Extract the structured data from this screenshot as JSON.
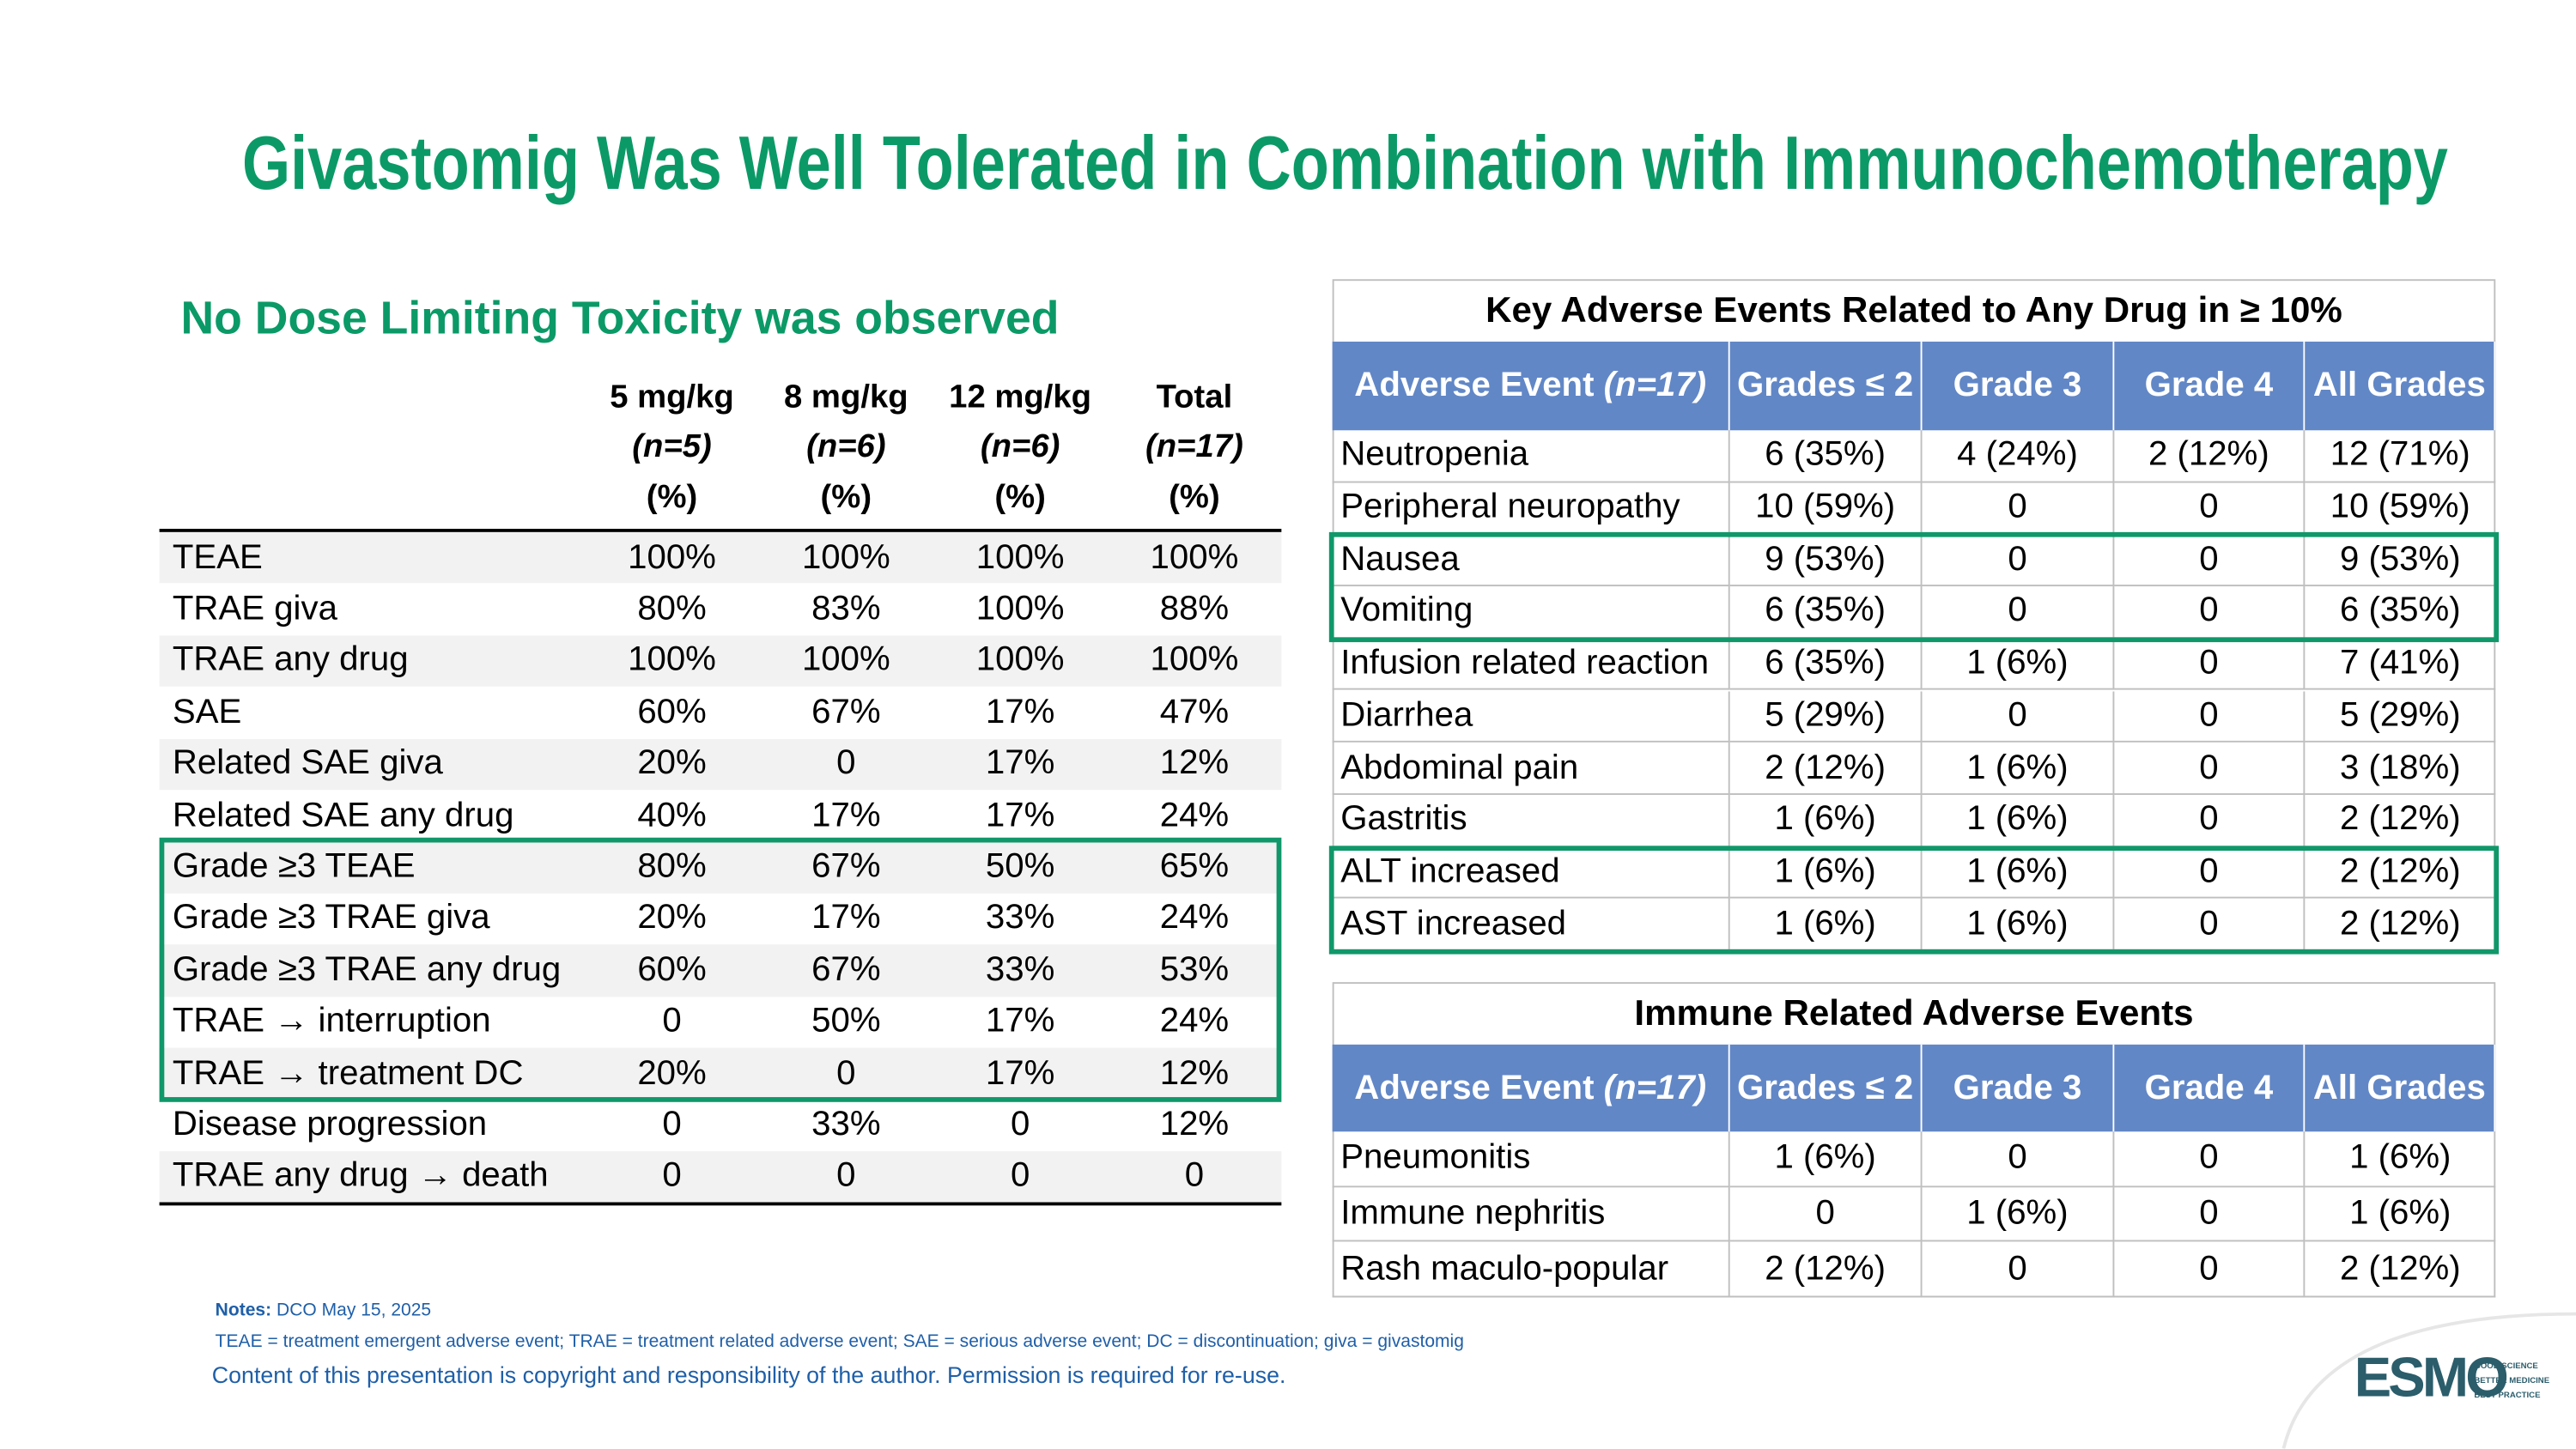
{
  "title": "Givastomig Was Well Tolerated in Combination with Immunochemotherapy",
  "left": {
    "subtitle": "No Dose Limiting Toxicity was observed",
    "columns": [
      {
        "dose": "5 mg/kg",
        "n": "(n=5)",
        "unit": "(%)"
      },
      {
        "dose": "8 mg/kg",
        "n": "(n=6)",
        "unit": "(%)"
      },
      {
        "dose": "12 mg/kg",
        "n": "(n=6)",
        "unit": "(%)"
      },
      {
        "dose": "Total",
        "n": "(n=17)",
        "unit": "(%)"
      }
    ],
    "rows": [
      [
        "TEAE",
        "100%",
        "100%",
        "100%",
        "100%"
      ],
      [
        "TRAE giva",
        "80%",
        "83%",
        "100%",
        "88%"
      ],
      [
        "TRAE any drug",
        "100%",
        "100%",
        "100%",
        "100%"
      ],
      [
        "SAE",
        "60%",
        "67%",
        "17%",
        "47%"
      ],
      [
        "Related SAE giva",
        "20%",
        "0",
        "17%",
        "12%"
      ],
      [
        "Related SAE any drug",
        "40%",
        "17%",
        "17%",
        "24%"
      ],
      [
        "Grade ≥3 TEAE",
        "80%",
        "67%",
        "50%",
        "65%"
      ],
      [
        "Grade ≥3 TRAE giva",
        "20%",
        "17%",
        "33%",
        "24%"
      ],
      [
        "Grade ≥3 TRAE any drug",
        "60%",
        "67%",
        "33%",
        "53%"
      ],
      [
        "TRAE → interruption",
        "0",
        "50%",
        "17%",
        "24%"
      ],
      [
        "TRAE → treatment DC",
        "20%",
        "0",
        "17%",
        "12%"
      ],
      [
        "Disease progression",
        "0",
        "33%",
        "0",
        "12%"
      ],
      [
        "TRAE any drug → death",
        "0",
        "0",
        "0",
        "0"
      ]
    ]
  },
  "key_ae": {
    "title": "Key Adverse Events Related to Any Drug in ≥ 10%",
    "headers": [
      {
        "text": "Adverse Event",
        "note": "(n=17)"
      },
      "Grades ≤ 2",
      "Grade 3",
      "Grade 4",
      "All Grades"
    ],
    "rows": [
      [
        "Neutropenia",
        "6 (35%)",
        "4 (24%)",
        "2 (12%)",
        "12 (71%)"
      ],
      [
        "Peripheral neuropathy",
        "10 (59%)",
        "0",
        "0",
        "10 (59%)"
      ],
      [
        "Nausea",
        "9 (53%)",
        "0",
        "0",
        "9 (53%)"
      ],
      [
        "Vomiting",
        "6 (35%)",
        "0",
        "0",
        "6 (35%)"
      ],
      [
        "Infusion related reaction",
        "6 (35%)",
        "1 (6%)",
        "0",
        "7 (41%)"
      ],
      [
        "Diarrhea",
        "5 (29%)",
        "0",
        "0",
        "5 (29%)"
      ],
      [
        "Abdominal pain",
        "2 (12%)",
        "1 (6%)",
        "0",
        "3 (18%)"
      ],
      [
        "Gastritis",
        "1 (6%)",
        "1 (6%)",
        "0",
        "2 (12%)"
      ],
      [
        "ALT increased",
        "1 (6%)",
        "1 (6%)",
        "0",
        "2 (12%)"
      ],
      [
        "AST increased",
        "1 (6%)",
        "1 (6%)",
        "0",
        "2 (12%)"
      ]
    ]
  },
  "immune_ae": {
    "title": "Immune Related Adverse Events",
    "headers": [
      {
        "text": "Adverse Event",
        "note": "(n=17)"
      },
      "Grades ≤ 2",
      "Grade 3",
      "Grade 4",
      "All Grades"
    ],
    "rows": [
      [
        "Pneumonitis",
        "1 (6%)",
        "0",
        "0",
        "1 (6%)"
      ],
      [
        "Immune nephritis",
        "0",
        "1 (6%)",
        "0",
        "1 (6%)"
      ],
      [
        "Rash maculo-popular",
        "2 (12%)",
        "0",
        "0",
        "2 (12%)"
      ]
    ]
  },
  "notes": {
    "label": "Notes:",
    "dco": "DCO May 15, 2025",
    "abbreviations": "TEAE = treatment emergent adverse event; TRAE = treatment related adverse event; SAE = serious adverse event; DC = discontinuation; giva = givastomig",
    "copyright": "Content of this presentation is copyright and responsibility of the author. Permission is required for re-use."
  },
  "logo": {
    "name": "ESMO",
    "tagline": [
      "GOOD SCIENCE",
      "BETTER MEDICINE",
      "BEST PRACTICE"
    ]
  }
}
